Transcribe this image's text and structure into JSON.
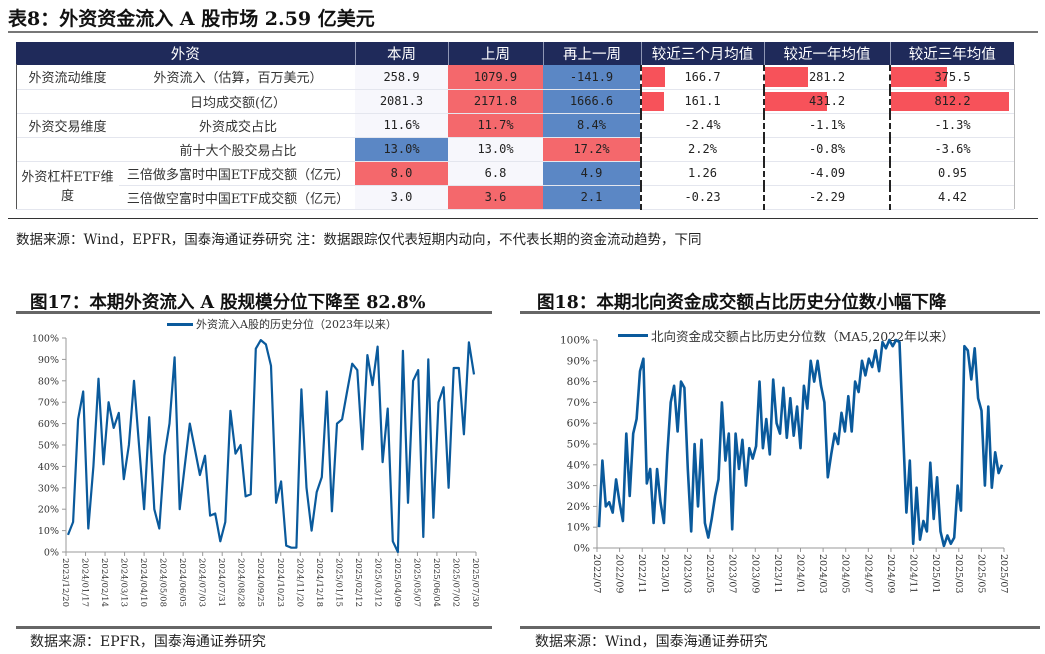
{
  "table": {
    "title": "表8：外资资金流入 A 股市场 2.59 亿美元",
    "headers": [
      "外资",
      "本周",
      "上周",
      "再上一周",
      "较近三个月均值",
      "较近一年均值",
      "较近三年均值"
    ],
    "groups": [
      "外资流动维度",
      "外资交易维度",
      "外资杠杆ETF维度"
    ],
    "rows": [
      {
        "group": "外资流动维度",
        "item": "外资流入（估算，百万美元）",
        "this_week": "258.9",
        "last_week": "1079.9",
        "prev_week": "-141.9",
        "vs_3m": "166.7",
        "vs_1y": "281.2",
        "vs_3y": "375.5"
      },
      {
        "group": "",
        "item": "日均成交额(亿）",
        "this_week": "2081.3",
        "last_week": "2171.8",
        "prev_week": "1666.6",
        "vs_3m": "161.1",
        "vs_1y": "431.2",
        "vs_3y": "812.2"
      },
      {
        "group": "外资交易维度",
        "item": "外资成交占比",
        "this_week": "11.6%",
        "last_week": "11.7%",
        "prev_week": "8.4%",
        "vs_3m": "-2.4%",
        "vs_1y": "-1.1%",
        "vs_3y": "-1.3%"
      },
      {
        "group": "",
        "item": "前十大个股交易占比",
        "this_week": "13.0%",
        "last_week": "13.0%",
        "prev_week": "17.2%",
        "vs_3m": "2.2%",
        "vs_1y": "-0.8%",
        "vs_3y": "-3.6%"
      },
      {
        "group": "外资杠杆ETF维度",
        "item": "三倍做多富时中国ETF成交额（亿元）",
        "this_week": "8.0",
        "last_week": "6.8",
        "prev_week": "4.9",
        "vs_3m": "1.26",
        "vs_1y": "-4.09",
        "vs_3y": "0.95"
      },
      {
        "group": "",
        "item": "三倍做空富时中国ETF成交额（亿元）",
        "this_week": "3.0",
        "last_week": "3.6",
        "prev_week": "2.1",
        "vs_3m": "-0.23",
        "vs_1y": "-2.29",
        "vs_3y": "4.42"
      }
    ],
    "source": "数据来源：Wind，EPFR，国泰海通证券研究  注：数据跟踪仅代表短期内动向，不代表长期的资金流动趋势，下同"
  },
  "colors": {
    "header_bg": "#1f2a5a",
    "red": "#f4686c",
    "blue": "#5b87c5",
    "bar_red": "#f7525a",
    "line": "#0a5a9c"
  },
  "chart17": {
    "title": "图17：本期外资流入 A 股规模分位下降至 82.8%",
    "source": "数据来源：EPFR，国泰海通证券研究"
  },
  "chart18": {
    "title": "图18：本期北向资金成交额占比历史分位数小幅下降",
    "source": "数据来源：Wind，国泰海通证券研究"
  },
  "chart_data": [
    {
      "type": "line",
      "title": "图17：本期外资流入 A 股规模分位下降至 82.8%",
      "legend": [
        "外资流入A股的历史分位（2023年以来）"
      ],
      "ylabel": "",
      "xlabel": "",
      "ylim": [
        0,
        100
      ],
      "yticks": [
        "0%",
        "10%",
        "20%",
        "30%",
        "40%",
        "50%",
        "60%",
        "70%",
        "80%",
        "90%",
        "100%"
      ],
      "xticks": [
        "2023/12/20",
        "2024/01/17",
        "2024/02/14",
        "2024/03/13",
        "2024/04/10",
        "2024/05/08",
        "2024/06/05",
        "2024/07/03",
        "2024/07/31",
        "2024/08/28",
        "2024/09/25",
        "2024/10/23",
        "2024/11/20",
        "2024/12/18",
        "2025/01/15",
        "2025/02/12",
        "2025/03/12",
        "2025/04/09",
        "2025/05/07",
        "2025/06/04",
        "2025/07/02",
        "2025/07/30"
      ],
      "series": [
        {
          "name": "外资流入A股的历史分位（2023年以来）",
          "values": [
            8,
            14,
            62,
            75,
            11,
            40,
            81,
            41,
            70,
            58,
            65,
            34,
            50,
            80,
            50,
            20,
            63,
            20,
            11,
            45,
            60,
            91,
            20,
            40,
            60,
            48,
            36,
            45,
            17,
            18,
            5,
            14,
            66,
            46,
            50,
            26,
            27,
            95,
            99,
            97,
            87,
            23,
            33,
            3,
            2,
            2,
            76,
            30,
            10,
            28,
            35,
            75,
            19,
            60,
            62,
            75,
            88,
            85,
            48,
            92,
            78,
            96,
            42,
            67,
            5,
            0,
            94,
            23,
            80,
            85,
            7,
            90,
            16,
            70,
            77,
            30,
            86,
            86,
            55,
            98,
            83
          ]
        }
      ]
    },
    {
      "type": "line",
      "title": "图18：本期北向资金成交额占比历史分位数小幅下降",
      "legend": [
        "北向资金成交额占比历史分位数（MA5,2022年以来）"
      ],
      "ylim": [
        0,
        100
      ],
      "yticks": [
        "0%",
        "10%",
        "20%",
        "30%",
        "40%",
        "50%",
        "60%",
        "70%",
        "80%",
        "90%",
        "100%"
      ],
      "xticks": [
        "2022/07",
        "2022/09",
        "2022/11",
        "2023/01",
        "2023/03",
        "2023/05",
        "2023/07",
        "2023/09",
        "2023/11",
        "2024/01",
        "2024/03",
        "2024/05",
        "2024/07",
        "2024/09",
        "2024/11",
        "2025/01",
        "2025/03",
        "2025/05",
        "2025/07"
      ],
      "series": [
        {
          "name": "北向资金成交额占比历史分位数（MA5,2022年以来）",
          "values": [
            10,
            42,
            20,
            22,
            17,
            33,
            22,
            13,
            55,
            25,
            55,
            62,
            85,
            91,
            31,
            38,
            12,
            38,
            22,
            12,
            45,
            70,
            78,
            56,
            80,
            77,
            38,
            8,
            50,
            20,
            52,
            12,
            5,
            14,
            25,
            33,
            70,
            42,
            55,
            9,
            55,
            38,
            52,
            30,
            48,
            43,
            49,
            80,
            48,
            62,
            45,
            81,
            60,
            55,
            77,
            53,
            72,
            54,
            68,
            48,
            78,
            67,
            90,
            80,
            90,
            78,
            70,
            34,
            45,
            55,
            50,
            65,
            56,
            73,
            56,
            80,
            75,
            90,
            83,
            91,
            87,
            95,
            85,
            99,
            96,
            100,
            97,
            100,
            99,
            57,
            17,
            42,
            2,
            29,
            4,
            13,
            8,
            41,
            14,
            34,
            8,
            1,
            6,
            2,
            5,
            30,
            18,
            97,
            95,
            81,
            96,
            72,
            66,
            30,
            68,
            29,
            46,
            36,
            40
          ]
        }
      ]
    }
  ]
}
